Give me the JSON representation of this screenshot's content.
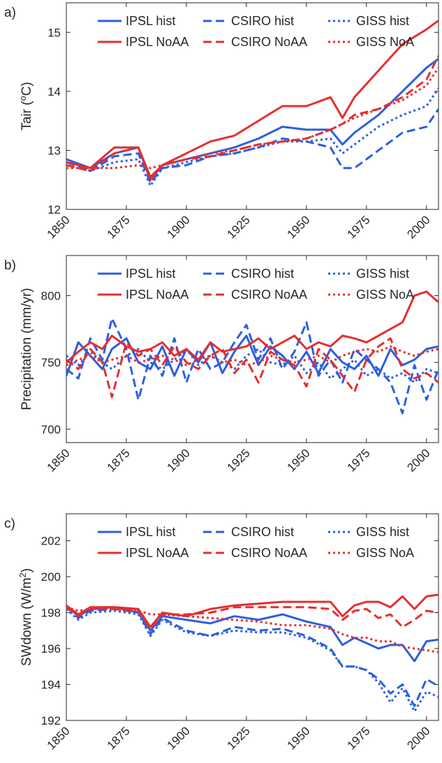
{
  "colors": {
    "hist": "#2b5fe0",
    "noaa": "#e62e2e",
    "axis": "#262626"
  },
  "chart_data": [
    {
      "type": "line",
      "panel_label": "a)",
      "ylabel": "Tair (°C)",
      "ylabel_base": "Tair (",
      "ylabel_sup": "o",
      "ylabel_end": "C)",
      "xlim": [
        1850,
        2005
      ],
      "ylim": [
        12,
        15.5
      ],
      "xticks": [
        1850,
        1875,
        1900,
        1925,
        1950,
        1975,
        2000
      ],
      "yticks": [
        12,
        13,
        14,
        15
      ],
      "x": [
        1850,
        1860,
        1870,
        1880,
        1885,
        1890,
        1900,
        1910,
        1920,
        1930,
        1940,
        1950,
        1960,
        1965,
        1970,
        1980,
        1990,
        2000,
        2005
      ],
      "series": [
        {
          "name": "IPSL hist",
          "style": "solid",
          "color": "hist",
          "values": [
            12.85,
            12.7,
            12.95,
            13.05,
            12.5,
            12.75,
            12.85,
            12.95,
            13.05,
            13.2,
            13.4,
            13.35,
            13.35,
            13.1,
            13.3,
            13.6,
            14.0,
            14.4,
            14.55
          ]
        },
        {
          "name": "CSIRO hist",
          "style": "dash",
          "color": "hist",
          "values": [
            12.8,
            12.65,
            12.9,
            12.95,
            12.45,
            12.7,
            12.75,
            12.9,
            12.95,
            13.05,
            13.2,
            13.15,
            13.05,
            12.7,
            12.7,
            13.0,
            13.3,
            13.4,
            13.7
          ]
        },
        {
          "name": "GISS hist",
          "style": "dot",
          "color": "hist",
          "values": [
            12.85,
            12.65,
            12.8,
            12.85,
            12.4,
            12.7,
            12.8,
            12.9,
            12.95,
            13.05,
            13.15,
            13.15,
            13.2,
            12.95,
            13.1,
            13.4,
            13.6,
            13.75,
            14.05
          ]
        },
        {
          "name": "IPSL NoAA",
          "style": "solid",
          "color": "noaa",
          "values": [
            12.8,
            12.7,
            13.05,
            13.05,
            12.55,
            12.75,
            12.95,
            13.15,
            13.25,
            13.5,
            13.75,
            13.75,
            13.9,
            13.55,
            13.9,
            14.35,
            14.8,
            15.05,
            15.2
          ]
        },
        {
          "name": "CSIRO NoAA",
          "style": "dash",
          "color": "noaa",
          "values": [
            12.75,
            12.65,
            12.95,
            13.05,
            12.5,
            12.75,
            12.85,
            12.9,
            13.0,
            13.1,
            13.15,
            13.2,
            13.35,
            13.45,
            13.6,
            13.7,
            13.9,
            14.2,
            14.6
          ]
        },
        {
          "name": "GISS NoA",
          "style": "dot",
          "color": "noaa",
          "values": [
            12.7,
            12.7,
            12.7,
            12.75,
            12.7,
            12.75,
            12.85,
            12.95,
            13.0,
            13.1,
            13.15,
            13.2,
            13.35,
            13.45,
            13.55,
            13.7,
            13.85,
            14.1,
            14.4
          ]
        }
      ]
    },
    {
      "type": "line",
      "panel_label": "b)",
      "ylabel": "Precipitation (mm/yr)",
      "xlim": [
        1850,
        2005
      ],
      "ylim": [
        690,
        830
      ],
      "xticks": [
        1850,
        1875,
        1900,
        1925,
        1950,
        1975,
        2000
      ],
      "yticks": [
        700,
        750,
        800
      ],
      "x": [
        1850,
        1855,
        1860,
        1865,
        1869,
        1875,
        1880,
        1885,
        1890,
        1895,
        1900,
        1905,
        1910,
        1915,
        1920,
        1925,
        1930,
        1935,
        1940,
        1945,
        1950,
        1955,
        1960,
        1965,
        1970,
        1975,
        1980,
        1985,
        1990,
        1995,
        2000,
        2005
      ],
      "series": [
        {
          "name": "IPSL hist",
          "style": "solid",
          "color": "hist",
          "values": [
            740,
            765,
            755,
            745,
            760,
            768,
            750,
            745,
            762,
            740,
            760,
            750,
            765,
            742,
            758,
            770,
            748,
            762,
            755,
            745,
            758,
            742,
            760,
            750,
            745,
            755,
            740,
            760,
            748,
            752,
            760,
            762
          ]
        },
        {
          "name": "CSIRO hist",
          "style": "dash",
          "color": "hist",
          "values": [
            745,
            738,
            768,
            752,
            783,
            760,
            722,
            755,
            740,
            768,
            735,
            760,
            745,
            750,
            765,
            778,
            752,
            768,
            745,
            758,
            780,
            740,
            752,
            735,
            760,
            752,
            745,
            735,
            712,
            748,
            722,
            745
          ]
        },
        {
          "name": "GISS hist",
          "style": "dot",
          "color": "hist",
          "values": [
            755,
            748,
            758,
            750,
            745,
            755,
            760,
            750,
            745,
            752,
            760,
            748,
            755,
            750,
            745,
            755,
            760,
            750,
            748,
            755,
            742,
            750,
            738,
            745,
            752,
            740,
            745,
            738,
            742,
            735,
            745,
            742
          ]
        },
        {
          "name": "IPSL NoAA",
          "style": "solid",
          "color": "noaa",
          "values": [
            750,
            758,
            765,
            760,
            770,
            762,
            758,
            760,
            765,
            755,
            760,
            752,
            765,
            758,
            760,
            762,
            768,
            760,
            765,
            770,
            760,
            765,
            762,
            770,
            768,
            765,
            770,
            775,
            780,
            800,
            803,
            795
          ]
        },
        {
          "name": "CSIRO NoAA",
          "style": "dash",
          "color": "noaa",
          "values": [
            752,
            745,
            760,
            750,
            724,
            765,
            755,
            760,
            748,
            762,
            750,
            745,
            755,
            760,
            742,
            752,
            735,
            758,
            752,
            748,
            732,
            760,
            752,
            740,
            728,
            752,
            762,
            768,
            745,
            738,
            742,
            735
          ]
        },
        {
          "name": "GISS NoA",
          "style": "dot",
          "color": "noaa",
          "values": [
            748,
            752,
            755,
            750,
            752,
            755,
            750,
            752,
            755,
            752,
            748,
            752,
            755,
            750,
            752,
            748,
            750,
            755,
            752,
            750,
            752,
            755,
            750,
            755,
            758,
            760,
            758,
            762,
            758,
            755,
            758,
            760
          ]
        }
      ]
    },
    {
      "type": "line",
      "panel_label": "c)",
      "ylabel": "SWdown (W/m²)",
      "ylabel_base": "SWdown (W/m",
      "ylabel_sup": "2",
      "ylabel_end": ")",
      "xlim": [
        1850,
        2005
      ],
      "ylim": [
        192,
        203.5
      ],
      "xticks": [
        1850,
        1875,
        1900,
        1925,
        1950,
        1975,
        2000
      ],
      "yticks": [
        192,
        194,
        196,
        198,
        200,
        202
      ],
      "x": [
        1850,
        1855,
        1860,
        1870,
        1880,
        1885,
        1890,
        1900,
        1910,
        1920,
        1930,
        1940,
        1950,
        1960,
        1965,
        1970,
        1975,
        1980,
        1985,
        1990,
        1995,
        2000,
        2005
      ],
      "series": [
        {
          "name": "IPSL hist",
          "style": "solid",
          "color": "hist",
          "values": [
            198.4,
            197.8,
            198.2,
            198.3,
            198.0,
            197.0,
            197.8,
            197.6,
            197.4,
            197.8,
            197.6,
            197.9,
            197.5,
            197.2,
            196.2,
            196.6,
            196.3,
            196.0,
            196.2,
            196.2,
            195.3,
            196.4,
            196.5
          ]
        },
        {
          "name": "CSIRO hist",
          "style": "dash",
          "color": "hist",
          "values": [
            198.3,
            197.7,
            198.1,
            198.2,
            198.0,
            196.8,
            197.7,
            197.0,
            196.7,
            197.2,
            197.0,
            197.1,
            196.7,
            196.0,
            195.0,
            195.0,
            194.8,
            194.3,
            193.5,
            194.0,
            192.8,
            194.3,
            193.9
          ]
        },
        {
          "name": "GISS hist",
          "style": "dot",
          "color": "hist",
          "values": [
            198.2,
            197.6,
            198.0,
            198.1,
            197.9,
            196.7,
            197.6,
            196.9,
            196.7,
            197.0,
            196.9,
            196.9,
            196.6,
            195.9,
            195.0,
            195.0,
            194.8,
            194.1,
            193.0,
            193.8,
            192.5,
            193.6,
            193.3
          ]
        },
        {
          "name": "IPSL NoAA",
          "style": "solid",
          "color": "noaa",
          "values": [
            198.4,
            197.9,
            198.3,
            198.3,
            198.2,
            197.2,
            198.0,
            197.8,
            198.2,
            198.4,
            198.5,
            198.6,
            198.6,
            198.6,
            197.8,
            198.4,
            198.6,
            198.6,
            198.3,
            198.9,
            198.2,
            198.9,
            199.0
          ]
        },
        {
          "name": "CSIRO NoAA",
          "style": "dash",
          "color": "noaa",
          "values": [
            198.3,
            197.8,
            198.2,
            198.2,
            198.1,
            197.1,
            197.9,
            197.9,
            198.0,
            198.3,
            198.3,
            198.3,
            198.3,
            198.2,
            197.6,
            198.1,
            198.2,
            197.7,
            197.9,
            197.2,
            197.6,
            198.1,
            198.0
          ]
        },
        {
          "name": "GISS NoA",
          "style": "dot",
          "color": "noaa",
          "values": [
            198.3,
            198.1,
            198.2,
            198.2,
            198.1,
            197.9,
            197.9,
            197.8,
            197.7,
            197.6,
            197.5,
            197.3,
            197.3,
            197.1,
            196.8,
            196.6,
            196.6,
            196.4,
            196.4,
            196.1,
            196.0,
            195.9,
            195.8
          ]
        }
      ]
    }
  ]
}
